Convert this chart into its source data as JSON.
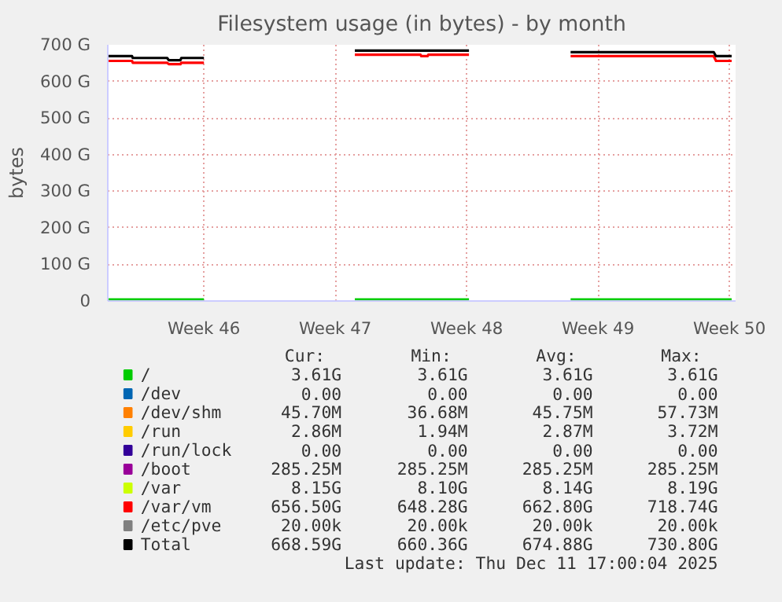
{
  "chart_data": {
    "type": "line",
    "title": "Filesystem usage (in bytes) - by month",
    "ylabel": "bytes",
    "x": [
      "2025-11-04T21:00",
      "2025-11-06T04:00",
      "2025-11-06T05:00",
      "2025-11-08T01:00",
      "2025-11-08T03:00",
      "2025-11-08T18:00",
      "2025-11-08T19:00",
      "2025-11-10T00:00",
      "2025-11-13T12:00",
      "2025-11-18T01:00",
      "2025-11-21T13:00",
      "2025-11-21T14:00",
      "2025-11-21T22:00",
      "2025-11-21T23:00",
      "2025-11-24T03:00",
      "2025-11-26T19:00",
      "2025-11-29T13:00",
      "2025-12-07T04:00",
      "2025-12-07T07:00",
      "2025-12-08T03:00"
    ],
    "xlim": [
      "2025-11-04T21:00",
      "2025-12-08T08:00"
    ],
    "xticks": [
      {
        "value": "2025-11-10",
        "label": "Week 46"
      },
      {
        "value": "2025-11-17",
        "label": "Week 47"
      },
      {
        "value": "2025-11-24",
        "label": "Week 48"
      },
      {
        "value": "2025-12-01",
        "label": "Week 49"
      },
      {
        "value": "2025-12-08",
        "label": "Week 50"
      }
    ],
    "ylim": [
      0,
      700
    ],
    "yticks": [
      0,
      {
        "value": 100,
        "label": "100 G"
      },
      {
        "value": 200,
        "label": "200 G"
      },
      {
        "value": 300,
        "label": "300 G"
      },
      {
        "value": 400,
        "label": "400 G"
      },
      {
        "value": 500,
        "label": "500 G"
      },
      {
        "value": 600,
        "label": "600 G"
      },
      {
        "value": 700,
        "label": "700 G"
      }
    ],
    "grid": true,
    "legend": "bottom",
    "marker": "none",
    "line_style": "solid",
    "series": [
      {
        "name": "/",
        "color": "#00cc00",
        "values": [
          4,
          4,
          4,
          4,
          4,
          4,
          4,
          4,
          null,
          4,
          4,
          4,
          4,
          4,
          4,
          null,
          4,
          4,
          4,
          4
        ]
      },
      {
        "name": "/dev",
        "color": "#0066b3",
        "values": [
          null,
          null,
          null,
          null,
          null,
          null,
          null,
          null,
          null,
          null,
          null,
          null,
          null,
          null,
          null,
          null,
          null,
          null,
          null,
          null
        ]
      },
      {
        "name": "/dev/shm",
        "color": "#ff8000",
        "values": [
          null,
          null,
          null,
          null,
          null,
          null,
          null,
          null,
          null,
          null,
          null,
          null,
          null,
          null,
          null,
          null,
          null,
          null,
          null,
          null
        ]
      },
      {
        "name": "/run",
        "color": "#ffcc00",
        "values": [
          null,
          null,
          null,
          null,
          null,
          null,
          null,
          null,
          null,
          null,
          null,
          null,
          null,
          null,
          null,
          null,
          null,
          null,
          null,
          null
        ]
      },
      {
        "name": "/run/lock",
        "color": "#330099",
        "values": [
          null,
          null,
          null,
          null,
          null,
          null,
          null,
          null,
          null,
          null,
          null,
          null,
          null,
          null,
          null,
          null,
          null,
          null,
          null,
          null
        ]
      },
      {
        "name": "/boot",
        "color": "#990099",
        "values": [
          null,
          null,
          null,
          null,
          null,
          null,
          null,
          null,
          null,
          null,
          null,
          null,
          null,
          null,
          null,
          null,
          null,
          null,
          null,
          null
        ]
      },
      {
        "name": "/var",
        "color": "#ccff00",
        "values": [
          null,
          null,
          null,
          null,
          null,
          null,
          null,
          null,
          null,
          null,
          null,
          null,
          null,
          null,
          null,
          null,
          null,
          null,
          null,
          null
        ]
      },
      {
        "name": "/var/vm",
        "color": "#ff0000",
        "values": [
          656,
          656,
          651,
          651,
          647,
          647,
          651,
          651,
          null,
          673,
          673,
          669,
          669,
          673,
          673,
          null,
          669,
          669,
          656,
          656
        ]
      },
      {
        "name": "/etc/pve",
        "color": "#808080",
        "values": [
          null,
          null,
          null,
          null,
          null,
          null,
          null,
          null,
          null,
          null,
          null,
          null,
          null,
          null,
          null,
          null,
          null,
          null,
          null,
          null
        ]
      },
      {
        "name": "Total",
        "color": "#000000",
        "values": [
          669,
          669,
          664,
          664,
          658,
          658,
          664,
          664,
          null,
          684,
          684,
          684,
          684,
          684,
          684,
          null,
          680,
          680,
          669,
          669
        ]
      }
    ],
    "annotations": [
      "Cur:",
      "Min:",
      "Avg:",
      "Max:",
      "3.61G",
      "3.61G",
      "3.61G",
      "3.61G",
      "0.00",
      "0.00",
      "0.00",
      "0.00",
      "45.70M",
      "36.68M",
      "45.75M",
      "57.73M",
      "2.86M",
      "1.94M",
      "2.87M",
      "3.72M",
      "0.00",
      "0.00",
      "0.00",
      "0.00",
      "285.25M",
      "285.25M",
      "285.25M",
      "285.25M",
      "8.15G",
      "8.10G",
      "8.14G",
      "8.19G",
      "656.50G",
      "648.28G",
      "662.80G",
      "718.74G",
      "20.00k",
      "20.00k",
      "20.00k",
      "20.00k",
      "668.59G",
      "660.36G",
      "674.88G",
      "730.80G",
      "Last update: Thu Dec 11 17:00:04 2025"
    ]
  }
}
